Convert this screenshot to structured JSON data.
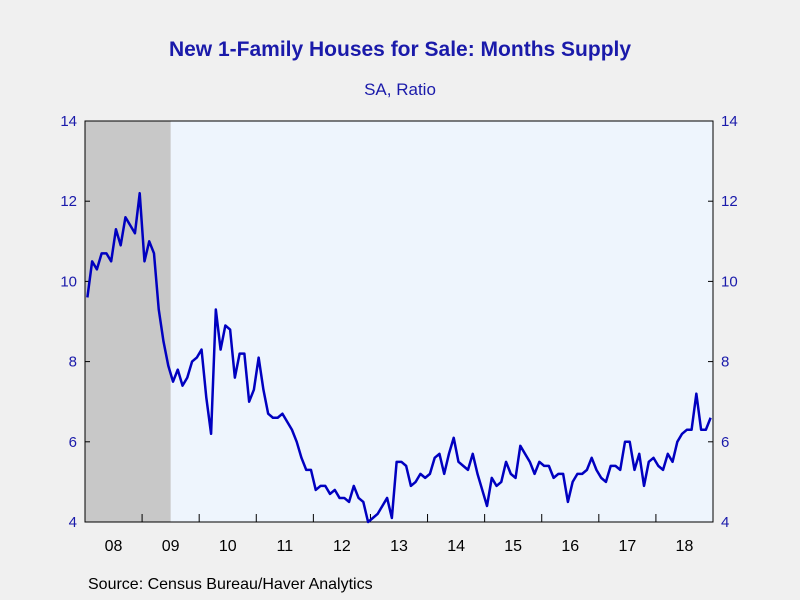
{
  "chart_data": {
    "type": "line",
    "title": "New 1-Family Houses for Sale: Months Supply",
    "subtitle": "SA, Ratio",
    "source": "Source:  Census Bureau/Haver Analytics",
    "ylim": [
      4,
      14
    ],
    "yticks": [
      4,
      6,
      8,
      10,
      12,
      14
    ],
    "xticks": [
      {
        "label": "08",
        "year": 2008
      },
      {
        "label": "09",
        "year": 2009
      },
      {
        "label": "10",
        "year": 2010
      },
      {
        "label": "11",
        "year": 2011
      },
      {
        "label": "12",
        "year": 2012
      },
      {
        "label": "13",
        "year": 2013
      },
      {
        "label": "14",
        "year": 2014
      },
      {
        "label": "15",
        "year": 2015
      },
      {
        "label": "16",
        "year": 2016
      },
      {
        "label": "17",
        "year": 2017
      },
      {
        "label": "18",
        "year": 2018
      }
    ],
    "x_start": "2008-01",
    "recession": {
      "start": "2008-01",
      "end": "2009-06"
    },
    "colors": {
      "line": "#0000c0",
      "axis_text": "#1a1aaa",
      "plot_bg": "#eef5fd",
      "recession": "#c8c8c8"
    },
    "series": [
      {
        "values": [
          9.6,
          10.5,
          10.3,
          10.7,
          10.7,
          10.5,
          11.3,
          10.9,
          11.6,
          11.4,
          11.2,
          12.2,
          10.5,
          11.0,
          10.7,
          9.3,
          8.5,
          7.9,
          7.5,
          7.8,
          7.4,
          7.6,
          8.0,
          8.1,
          8.3,
          7.1,
          6.2,
          9.3,
          8.3,
          8.9,
          8.8,
          7.6,
          8.2,
          8.2,
          7.0,
          7.3,
          8.1,
          7.3,
          6.7,
          6.6,
          6.6,
          6.7,
          6.5,
          6.3,
          6.0,
          5.6,
          5.3,
          5.3,
          4.8,
          4.9,
          4.9,
          4.7,
          4.8,
          4.6,
          4.6,
          4.5,
          4.9,
          4.6,
          4.5,
          4.0,
          4.1,
          4.2,
          4.4,
          4.6,
          4.1,
          5.5,
          5.5,
          5.4,
          4.9,
          5.0,
          5.2,
          5.1,
          5.2,
          5.6,
          5.7,
          5.2,
          5.7,
          6.1,
          5.5,
          5.4,
          5.3,
          5.7,
          5.2,
          4.8,
          4.4,
          5.1,
          4.9,
          5.0,
          5.5,
          5.2,
          5.1,
          5.9,
          5.7,
          5.5,
          5.2,
          5.5,
          5.4,
          5.4,
          5.1,
          5.2,
          5.2,
          4.5,
          5.0,
          5.2,
          5.2,
          5.3,
          5.6,
          5.3,
          5.1,
          5.0,
          5.4,
          5.4,
          5.3,
          6.0,
          6.0,
          5.3,
          5.7,
          4.9,
          5.5,
          5.6,
          5.4,
          5.3,
          5.7,
          5.5,
          6.0,
          6.2,
          6.3,
          6.3,
          7.2,
          6.3,
          6.3,
          6.6
        ]
      }
    ]
  }
}
